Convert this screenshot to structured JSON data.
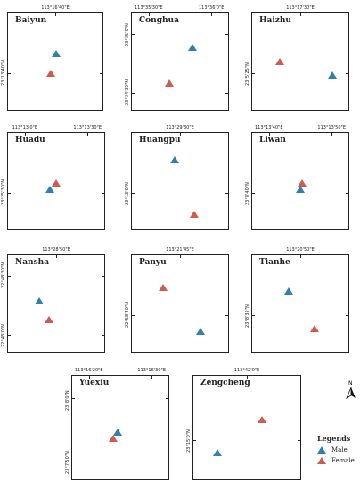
{
  "colors": {
    "male": "#2f7fb3",
    "female": "#cf5a4e",
    "frame": "#222222"
  },
  "panels": [
    {
      "name": "Baiyun",
      "x_labels": [
        "113°16'40\"E"
      ],
      "y_labels": [
        "23°13'40\"N"
      ],
      "points": [
        {
          "sex": "male",
          "fx": 0.5,
          "fy": 0.42
        },
        {
          "sex": "female",
          "fx": 0.44,
          "fy": 0.62
        }
      ]
    },
    {
      "name": "Conghua",
      "x_labels": [
        "113°35'30\"E",
        "113°36'0\"E"
      ],
      "y_labels": [
        "23°35'0\"N",
        "23°34'30\"N"
      ],
      "points": [
        {
          "sex": "male",
          "fx": 0.62,
          "fy": 0.35
        },
        {
          "sex": "female",
          "fx": 0.38,
          "fy": 0.72
        }
      ]
    },
    {
      "name": "Haizhu",
      "x_labels": [
        "113°17'30\"E"
      ],
      "y_labels": [
        "23°5'25\"N"
      ],
      "points": [
        {
          "sex": "female",
          "fx": 0.28,
          "fy": 0.5
        },
        {
          "sex": "male",
          "fx": 0.82,
          "fy": 0.64
        }
      ]
    },
    {
      "name": "Huadu",
      "x_labels": [
        "113°13'0\"E",
        "113°13'30\"E"
      ],
      "y_labels": [
        "23°25'30\"N"
      ],
      "points": [
        {
          "sex": "female",
          "fx": 0.49,
          "fy": 0.52
        },
        {
          "sex": "male",
          "fx": 0.43,
          "fy": 0.58
        }
      ]
    },
    {
      "name": "Huangpu",
      "x_labels": [
        "113°29'30\"E"
      ],
      "y_labels": [
        "23°13'0\"N"
      ],
      "points": [
        {
          "sex": "male",
          "fx": 0.44,
          "fy": 0.28
        },
        {
          "sex": "female",
          "fx": 0.64,
          "fy": 0.84
        }
      ]
    },
    {
      "name": "Liwan",
      "x_labels": [
        "113°13'40\"E",
        "113°13'50\"E"
      ],
      "y_labels": [
        "23°8'40\"N"
      ],
      "points": [
        {
          "sex": "female",
          "fx": 0.51,
          "fy": 0.52
        },
        {
          "sex": "male",
          "fx": 0.49,
          "fy": 0.58
        }
      ]
    },
    {
      "name": "Nansha",
      "x_labels": [
        "113°28'50\"E"
      ],
      "y_labels": [
        "22°48'30\"N",
        "22°48'0\"N"
      ],
      "points": [
        {
          "sex": "male",
          "fx": 0.32,
          "fy": 0.47
        },
        {
          "sex": "female",
          "fx": 0.42,
          "fy": 0.66
        }
      ]
    },
    {
      "name": "Panyu",
      "x_labels": [
        "113°21'45\"E"
      ],
      "y_labels": [
        "22°58'40\"N"
      ],
      "points": [
        {
          "sex": "female",
          "fx": 0.32,
          "fy": 0.34
        },
        {
          "sex": "male",
          "fx": 0.7,
          "fy": 0.78
        }
      ]
    },
    {
      "name": "Tianhe",
      "x_labels": [
        "113°20'50\"E"
      ],
      "y_labels": [
        "23°8'32\"N"
      ],
      "points": [
        {
          "sex": "male",
          "fx": 0.37,
          "fy": 0.37
        },
        {
          "sex": "female",
          "fx": 0.64,
          "fy": 0.75
        }
      ]
    },
    {
      "name": "Yuexiu",
      "x_labels": [
        "113°16'20\"E",
        "113°16'30\"E"
      ],
      "y_labels": [
        "23°8'0\"N",
        "23°7'50\"N"
      ],
      "points": [
        {
          "sex": "male",
          "fx": 0.46,
          "fy": 0.54
        },
        {
          "sex": "female",
          "fx": 0.42,
          "fy": 0.6
        }
      ]
    },
    {
      "name": "Zengcheng",
      "x_labels": [
        "113°42'0\"E"
      ],
      "y_labels": [
        "23°15'0\"N"
      ],
      "points": [
        {
          "sex": "female",
          "fx": 0.63,
          "fy": 0.42
        },
        {
          "sex": "male",
          "fx": 0.22,
          "fy": 0.74
        }
      ]
    }
  ],
  "legend": {
    "title": "Legends",
    "items": [
      {
        "sex": "male",
        "label": "Male"
      },
      {
        "sex": "female",
        "label": "Female"
      }
    ]
  },
  "north_label": "N"
}
